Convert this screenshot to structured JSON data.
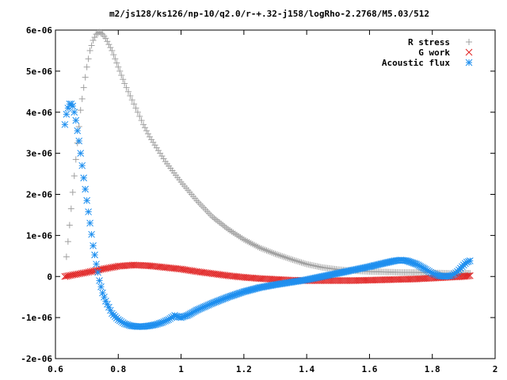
{
  "chart_data": {
    "type": "scatter",
    "title": "m2/js128/ks126/np-10/q2.0/r-+.32-j158/logRho-2.2768/M5.03/512",
    "xlabel": "",
    "ylabel": "",
    "xlim": [
      0.6,
      2.0
    ],
    "ylim": [
      -2e-06,
      6e-06
    ],
    "x_ticks": [
      0.6,
      0.8,
      1.0,
      1.2,
      1.4,
      1.6,
      1.8,
      2.0
    ],
    "x_tick_labels": [
      "0.6",
      "0.8",
      "1",
      "1.2",
      "1.4",
      "1.6",
      "1.8",
      "2"
    ],
    "y_ticks": [
      -2e-06,
      -1e-06,
      0,
      1e-06,
      2e-06,
      3e-06,
      4e-06,
      5e-06,
      6e-06
    ],
    "y_tick_labels": [
      "-2e-06",
      "-1e-06",
      "0",
      "1e-06",
      "2e-06",
      "3e-06",
      "4e-06",
      "5e-06",
      "6e-06"
    ],
    "grid": false,
    "legend_position": "top-right",
    "series": [
      {
        "name": "R stress",
        "marker": "plus",
        "color": "#a0a0a0",
        "x": [
          0.635,
          0.64,
          0.645,
          0.65,
          0.655,
          0.66,
          0.665,
          0.67,
          0.675,
          0.68,
          0.69,
          0.7,
          0.71,
          0.72,
          0.73,
          0.74,
          0.75,
          0.76,
          0.78,
          0.8,
          0.82,
          0.85,
          0.88,
          0.9,
          0.95,
          1.0,
          1.05,
          1.1,
          1.15,
          1.2,
          1.25,
          1.3,
          1.35,
          1.4,
          1.45,
          1.5,
          1.55,
          1.6,
          1.65,
          1.7,
          1.75,
          1.8,
          1.85,
          1.88,
          1.9,
          1.92
        ],
        "y": [
          4.8e-07,
          8.5e-07,
          1.25e-06,
          1.65e-06,
          2.05e-06,
          2.45e-06,
          2.85e-06,
          3.25e-06,
          3.65e-06,
          4.05e-06,
          4.6e-06,
          5.1e-06,
          5.5e-06,
          5.75e-06,
          5.9e-06,
          5.95e-06,
          5.9e-06,
          5.8e-06,
          5.5e-06,
          5.1e-06,
          4.7e-06,
          4.2e-06,
          3.7e-06,
          3.4e-06,
          2.8e-06,
          2.3e-06,
          1.85e-06,
          1.45e-06,
          1.15e-06,
          9e-07,
          7e-07,
          5.5e-07,
          4.2e-07,
          3e-07,
          2.2e-07,
          1.7e-07,
          1.4e-07,
          1.2e-07,
          1.1e-07,
          1e-07,
          1e-07,
          9e-08,
          8e-08,
          8e-08,
          8e-08,
          8e-08
        ]
      },
      {
        "name": "G work",
        "marker": "cross",
        "color": "#e02020",
        "x": [
          0.63,
          0.65,
          0.7,
          0.75,
          0.8,
          0.85,
          0.9,
          0.95,
          1.0,
          1.05,
          1.1,
          1.15,
          1.2,
          1.25,
          1.3,
          1.35,
          1.4,
          1.45,
          1.5,
          1.55,
          1.6,
          1.65,
          1.7,
          1.75,
          1.8,
          1.85,
          1.9,
          1.92
        ],
        "y": [
          0.0,
          3e-08,
          1e-07,
          1.8e-07,
          2.5e-07,
          2.8e-07,
          2.6e-07,
          2.2e-07,
          1.8e-07,
          1.2e-07,
          7e-08,
          2e-08,
          -2e-08,
          -5e-08,
          -7e-08,
          -9e-08,
          -1e-07,
          -1e-07,
          -1e-07,
          -1e-07,
          -9e-08,
          -8e-08,
          -7e-08,
          -6e-08,
          -4e-08,
          -2e-08,
          0.0,
          2e-08
        ]
      },
      {
        "name": "Acoustic flux",
        "marker": "star",
        "color": "#1e8fef",
        "x": [
          0.63,
          0.635,
          0.64,
          0.645,
          0.65,
          0.655,
          0.66,
          0.665,
          0.67,
          0.675,
          0.68,
          0.685,
          0.69,
          0.7,
          0.71,
          0.72,
          0.73,
          0.74,
          0.75,
          0.76,
          0.78,
          0.8,
          0.82,
          0.84,
          0.86,
          0.88,
          0.9,
          0.92,
          0.94,
          0.96,
          0.97,
          0.98,
          0.99,
          1.0,
          1.01,
          1.02,
          1.05,
          1.1,
          1.15,
          1.2,
          1.25,
          1.3,
          1.35,
          1.4,
          1.45,
          1.5,
          1.55,
          1.6,
          1.65,
          1.68,
          1.7,
          1.72,
          1.75,
          1.78,
          1.8,
          1.82,
          1.84,
          1.86,
          1.87,
          1.88,
          1.89,
          1.9,
          1.91,
          1.92
        ],
        "y": [
          3.7e-06,
          3.95e-06,
          4.1e-06,
          4.2e-06,
          4.2e-06,
          4.15e-06,
          4e-06,
          3.8e-06,
          3.55e-06,
          3.3e-06,
          3e-06,
          2.7e-06,
          2.4e-06,
          1.85e-06,
          1.3e-06,
          7.5e-07,
          3e-07,
          -1e-07,
          -4e-07,
          -6e-07,
          -9e-07,
          -1.05e-06,
          -1.15e-06,
          -1.2e-06,
          -1.22e-06,
          -1.22e-06,
          -1.2e-06,
          -1.17e-06,
          -1.12e-06,
          -1.05e-06,
          -1e-06,
          -9.5e-07,
          -9.8e-07,
          -1e-06,
          -9.7e-07,
          -9.5e-07,
          -8.2e-07,
          -6.5e-07,
          -5e-07,
          -3.7e-07,
          -2.7e-07,
          -2e-07,
          -1.4e-07,
          -8e-08,
          0.0,
          8e-08,
          1.6e-07,
          2.4e-07,
          3.3e-07,
          3.8e-07,
          4e-07,
          3.8e-07,
          3e-07,
          1.7e-07,
          8e-08,
          2e-08,
          0.0,
          2e-08,
          6e-08,
          1.2e-07,
          2e-07,
          2.8e-07,
          3.5e-07,
          3.8e-07
        ]
      }
    ]
  }
}
